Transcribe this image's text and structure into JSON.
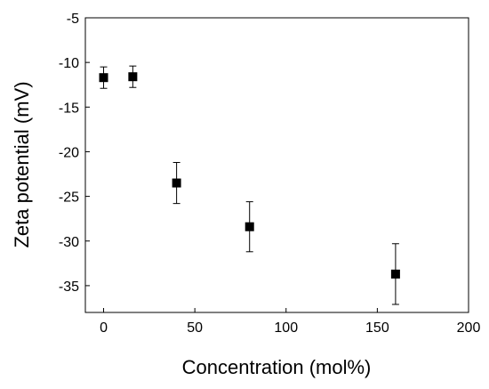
{
  "chart_data": {
    "type": "scatter",
    "title": "",
    "xlabel": "Concentration (mol%)",
    "ylabel": "Zeta potential (mV)",
    "xlim": [
      -10,
      200
    ],
    "ylim": [
      -38,
      -5
    ],
    "xticks": [
      0,
      50,
      100,
      150,
      200
    ],
    "yticks": [
      -5,
      -10,
      -15,
      -20,
      -25,
      -30,
      -35
    ],
    "grid": false,
    "legend": "none",
    "marker": "square",
    "color": "#000000",
    "series": [
      {
        "points": [
          {
            "x": 0,
            "y": -11.7,
            "err": 1.2
          },
          {
            "x": 16,
            "y": -11.6,
            "err": 1.2
          },
          {
            "x": 40,
            "y": -23.5,
            "err": 2.3
          },
          {
            "x": 80,
            "y": -28.4,
            "err": 2.8
          },
          {
            "x": 160,
            "y": -33.7,
            "err": 3.4
          }
        ]
      }
    ]
  }
}
